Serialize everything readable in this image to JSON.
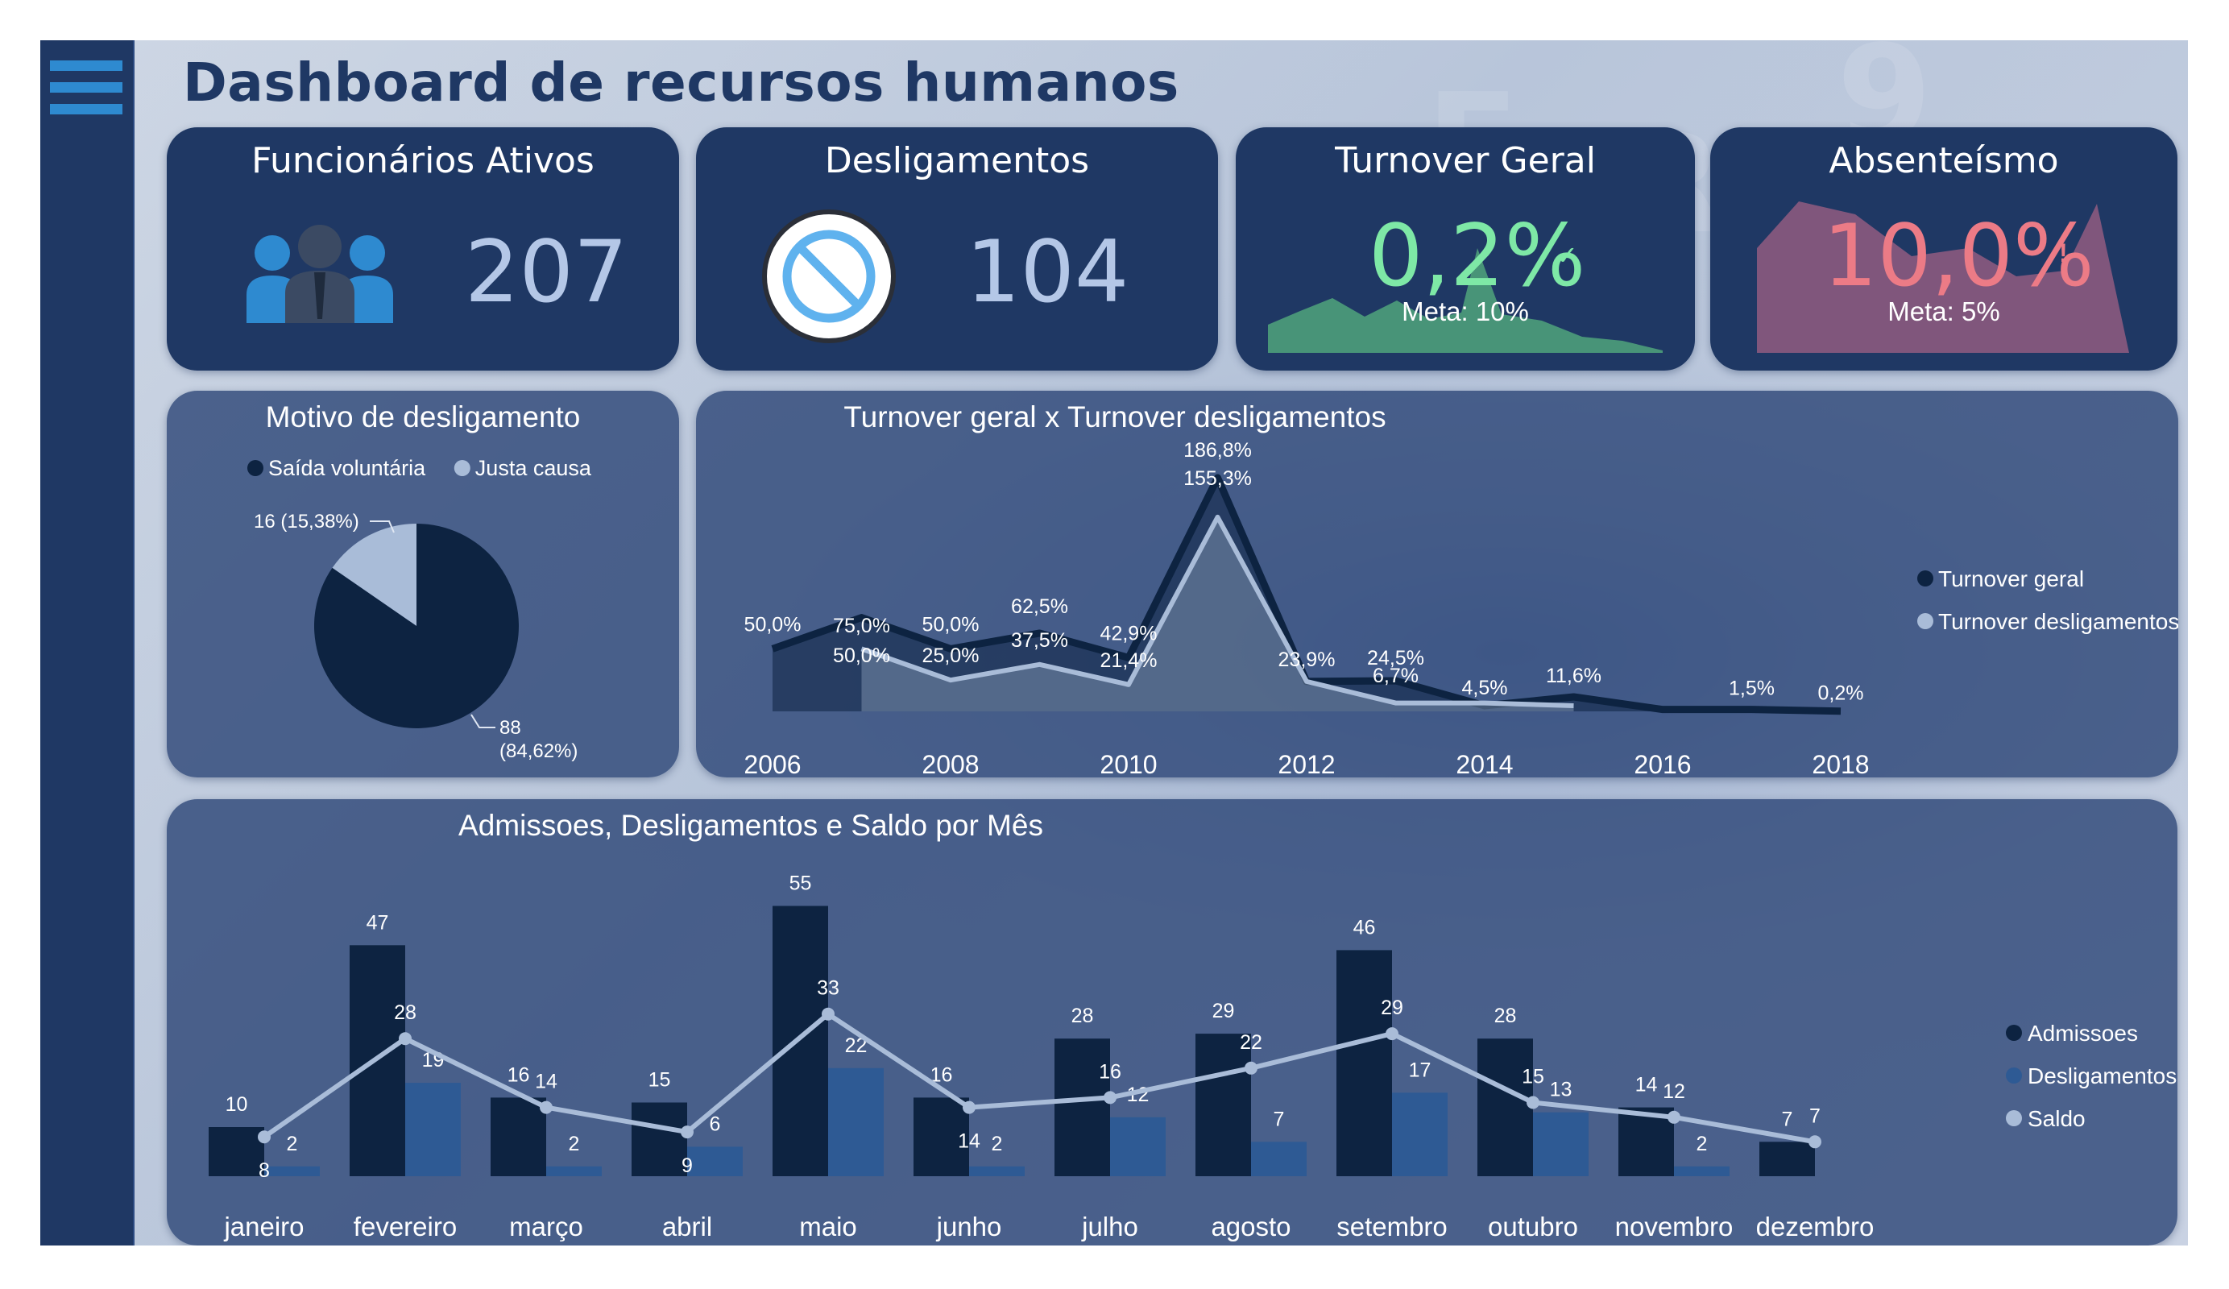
{
  "dashboard": {
    "title": "Dashboard de recursos humanos"
  },
  "kpis": {
    "active": {
      "title": "Funcionários Ativos",
      "value": "207"
    },
    "dismissals": {
      "title": "Desligamentos",
      "value": "104"
    },
    "turnover": {
      "title": "Turnover Geral",
      "value": "0,2%",
      "mark": "✓",
      "target": "Meta: 10%",
      "color": "#7ee8a6"
    },
    "absenteeism": {
      "title": "Absenteísmo",
      "value": "10,0%",
      "mark": "!",
      "target": "Meta: 5%",
      "color": "#ec7b86"
    }
  },
  "colors": {
    "card": "#1f3864",
    "navy": "#0d2341",
    "mid_blue": "#2e5a94",
    "light": "#b4c7e7",
    "turnover_fill": "#4c9f7a",
    "absent_fill": "#8b5a7e"
  },
  "icons": {
    "people": "people-group-icon",
    "prohibited": "prohibited-icon",
    "menu": "hamburger-menu-icon",
    "check": "check-icon",
    "warning": "warning-icon"
  },
  "chart_data": [
    {
      "type": "pie",
      "title": "Motivo de desligamento",
      "legend_position": "top",
      "slices": [
        {
          "name": "Saída voluntária",
          "value": 88,
          "label": "88\n(84,62%)",
          "color": "#0d2341"
        },
        {
          "name": "Justa causa",
          "value": 16,
          "label": "16 (15,38%)",
          "color": "#a9bcd8"
        }
      ]
    },
    {
      "type": "line",
      "title": "Turnover geral x Turnover desligamentos",
      "legend_position": "right",
      "x": [
        "2006",
        "2007",
        "2008",
        "2009",
        "2010",
        "2011",
        "2012",
        "2013",
        "2014",
        "2015",
        "2016",
        "2017",
        "2018"
      ],
      "x_tick_labels": [
        "2006",
        "2008",
        "2010",
        "2012",
        "2014",
        "2016",
        "2018"
      ],
      "series": [
        {
          "name": "Turnover geral",
          "color": "#0d2341",
          "values": [
            50.0,
            75.0,
            50.0,
            62.5,
            42.9,
            186.8,
            23.9,
            24.5,
            4.5,
            11.6,
            1.5,
            1.5,
            0.2
          ],
          "labels": [
            "50,0%",
            "75,0%",
            "50,0%",
            "62,5%",
            "42,9%",
            "186,8%",
            "",
            "24,5%",
            "4,5%",
            "11,6%",
            "",
            "1,5%",
            "0,2%"
          ]
        },
        {
          "name": "Turnover desligamentos",
          "color": "#a9bcd8",
          "values": [
            null,
            50.0,
            25.0,
            37.5,
            21.4,
            155.3,
            23.9,
            6.7,
            6.7,
            4.5,
            null,
            null,
            null
          ],
          "labels": [
            "",
            "50,0%",
            "25,0%",
            "37,5%",
            "21,4%",
            "155,3%",
            "23,9%",
            "6,7%",
            "",
            "",
            "",
            "",
            ""
          ]
        }
      ]
    },
    {
      "type": "bar",
      "title": "Admissoes, Desligamentos e Saldo por Mês",
      "legend_position": "right",
      "categories": [
        "janeiro",
        "fevereiro",
        "março",
        "abril",
        "maio",
        "junho",
        "julho",
        "agosto",
        "setembro",
        "outubro",
        "novembro",
        "dezembro"
      ],
      "series": [
        {
          "name": "Admissoes",
          "color": "#0d2341",
          "values": [
            10,
            47,
            16,
            15,
            55,
            16,
            28,
            29,
            46,
            28,
            14,
            7
          ]
        },
        {
          "name": "Desligamentos",
          "color": "#2e5a94",
          "values": [
            2,
            19,
            2,
            6,
            22,
            2,
            12,
            7,
            17,
            13,
            2,
            0
          ]
        },
        {
          "name": "Saldo",
          "type": "line",
          "color": "#a9bcd8",
          "values": [
            8,
            28,
            14,
            9,
            33,
            14,
            16,
            22,
            29,
            15,
            12,
            7
          ]
        }
      ]
    }
  ]
}
